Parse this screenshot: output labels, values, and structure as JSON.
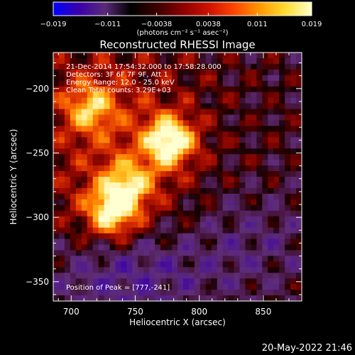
{
  "chart_data": {
    "type": "heatmap",
    "title": "Reconstructed RHESSI Image",
    "xlabel": "Heliocentric X (arcsec)",
    "ylabel": "Heliocentric Y (arcsec)",
    "xlim": [
      686,
      880
    ],
    "ylim": [
      -365,
      -172
    ],
    "xticks": [
      700,
      750,
      800,
      850
    ],
    "yticks": [
      -200,
      -250,
      -300,
      -350
    ],
    "xtick_labels": [
      "700",
      "750",
      "800",
      "850"
    ],
    "ytick_labels": [
      "−200",
      "−250",
      "−300",
      "−350"
    ],
    "colorbar": {
      "min": -0.019,
      "max": 0.019,
      "ticks": [
        -0.019,
        -0.011,
        -0.0038,
        0.0038,
        0.011,
        0.019
      ],
      "tick_labels": [
        "−0.019",
        "−0.011",
        "−0.0038",
        "0.0038",
        "0.011",
        "0.019"
      ],
      "label": "(photons cm⁻² s⁻¹ asec⁻²)",
      "colors": [
        "#0000ff",
        "#3b00aa",
        "#5a2a7a",
        "#000000",
        "#3a0000",
        "#8b0000",
        "#cc1100",
        "#ff4400",
        "#ff9900",
        "#ffdd33",
        "#ffffcc"
      ]
    },
    "annotations": [
      "21-Dec-2014 17:54:32.000 to 17:58:28.000",
      "Detectors: 3F 6F 7F 9F, Att 1",
      "Energy Range: 12.0 - 25.0 keV",
      "Clean     Total counts: 3.29E+03"
    ],
    "peak_label": "Position of Peak = [777,-241]",
    "peaks": [
      {
        "x": 777,
        "y": -241,
        "amplitude": 0.019
      },
      {
        "x": 732,
        "y": -296,
        "amplitude": 0.016
      },
      {
        "x": 715,
        "y": -215,
        "amplitude": 0.011
      },
      {
        "x": 745,
        "y": -275,
        "amplitude": 0.012
      }
    ]
  },
  "footer_date": "20-May-2022 21:46"
}
